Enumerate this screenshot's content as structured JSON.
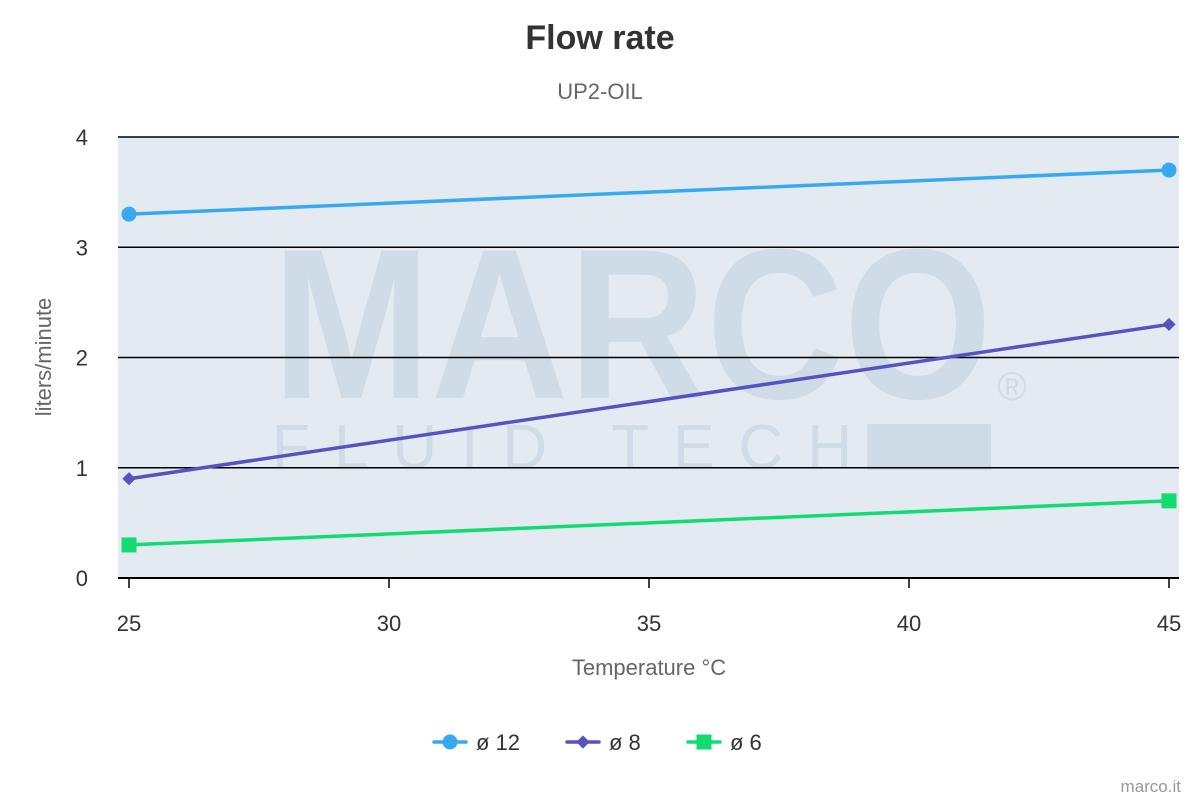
{
  "watermark": {
    "logo_text": "MARCO",
    "logo_subtext": "FLUID TECH",
    "registered_mark": "®"
  },
  "credit": "marco.it",
  "colors": {
    "plot_background": "#e3eaf1",
    "gridline": "#000000",
    "axis_label": "#666666",
    "tick_label": "#333333",
    "title": "#333333",
    "watermark": "#cfdbe6"
  },
  "chart_data": {
    "type": "line",
    "title": "Flow rate",
    "subtitle": "UP2-OIL",
    "xlabel": "Temperature °C",
    "ylabel": "liters/minute",
    "xlim": [
      25,
      45
    ],
    "ylim": [
      0,
      4
    ],
    "x_ticks": [
      25,
      30,
      35,
      40,
      45
    ],
    "y_ticks": [
      0,
      1,
      2,
      3,
      4
    ],
    "grid": true,
    "legend_position": "bottom-center",
    "series": [
      {
        "name": "ø 12",
        "color": "#36a9f0",
        "marker": "circle",
        "x": [
          25,
          45
        ],
        "y": [
          3.3,
          3.7
        ]
      },
      {
        "name": "ø 8",
        "color": "#5652c0",
        "marker": "diamond",
        "x": [
          25,
          45
        ],
        "y": [
          0.9,
          2.3
        ]
      },
      {
        "name": "ø 6",
        "color": "#12db72",
        "marker": "square",
        "x": [
          25,
          45
        ],
        "y": [
          0.3,
          0.7
        ]
      }
    ]
  }
}
